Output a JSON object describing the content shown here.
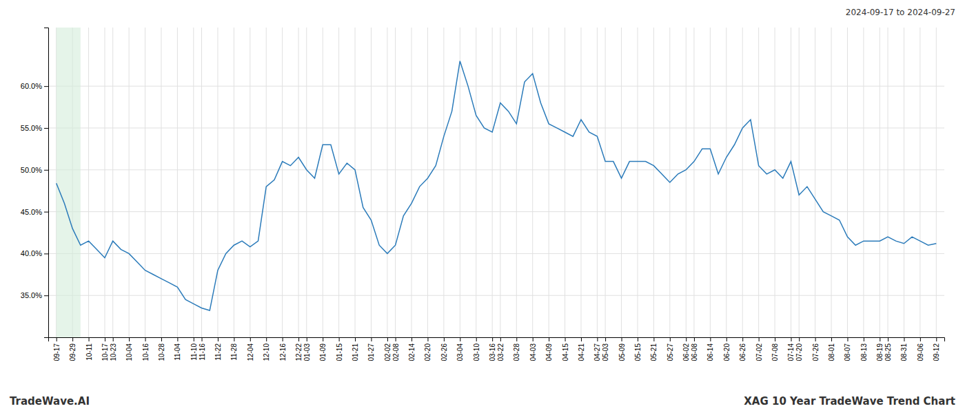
{
  "chart_data": {
    "type": "line",
    "title": "XAG 10 Year TradeWave Trend Chart",
    "subtitle": "2024-09-17 to 2024-09-27",
    "annotations": [
      "TradeWave.AI"
    ],
    "color": "#2b7bba",
    "grid": true,
    "highlight": {
      "start": 0,
      "end": 3,
      "color": "#d4edda"
    },
    "ylim": [
      0.3,
      0.67
    ],
    "yticks": [
      {
        "value": 0.35,
        "label": "35.0%"
      },
      {
        "value": 0.4,
        "label": "40.0%"
      },
      {
        "value": 0.45,
        "label": "45.0%"
      },
      {
        "value": 0.5,
        "label": "50.0%"
      },
      {
        "value": 0.55,
        "label": "55.0%"
      },
      {
        "value": 0.6,
        "label": "60.0%"
      }
    ],
    "categories": [
      "09-17",
      null,
      "09-29",
      null,
      "10-11",
      null,
      "10-17",
      "10-23",
      null,
      "10-04",
      null,
      "10-16",
      null,
      "10-28",
      null,
      "11-04",
      null,
      "11-10",
      "11-16",
      null,
      "11-22",
      null,
      "11-28",
      null,
      "12-04",
      null,
      "12-10",
      null,
      "12-16",
      null,
      "12-22",
      "01-03",
      null,
      "01-09",
      null,
      "01-15",
      null,
      "01-21",
      null,
      "01-27",
      null,
      "02-02",
      "02-08",
      null,
      "02-14",
      null,
      "02-20",
      null,
      "02-26",
      null,
      "03-04",
      null,
      "03-10",
      null,
      "03-16",
      "03-22",
      null,
      "03-28",
      null,
      "04-03",
      null,
      "04-09",
      null,
      "04-15",
      null,
      "04-21",
      null,
      "04-27",
      "05-03",
      null,
      "05-09",
      null,
      "05-15",
      null,
      "05-21",
      null,
      "05-27",
      null,
      "06-02",
      "06-08",
      null,
      "06-14",
      null,
      "06-20",
      null,
      "06-26",
      null,
      "07-02",
      null,
      "07-08",
      null,
      "07-14",
      "07-20",
      null,
      "07-26",
      null,
      "08-01",
      null,
      "08-07",
      null,
      "08-13",
      null,
      "08-19",
      "08-25",
      null,
      "08-31",
      null,
      "09-06",
      null,
      "09-12"
    ],
    "values": [
      0.484,
      0.46,
      0.43,
      0.41,
      0.415,
      0.405,
      0.395,
      0.415,
      0.405,
      0.4,
      0.39,
      0.38,
      0.375,
      0.37,
      0.365,
      0.36,
      0.345,
      0.34,
      0.335,
      0.332,
      0.38,
      0.4,
      0.41,
      0.415,
      0.408,
      0.415,
      0.48,
      0.488,
      0.51,
      0.505,
      0.515,
      0.5,
      0.49,
      0.53,
      0.53,
      0.495,
      0.508,
      0.5,
      0.455,
      0.44,
      0.41,
      0.4,
      0.41,
      0.445,
      0.46,
      0.48,
      0.49,
      0.505,
      0.54,
      0.57,
      0.63,
      0.6,
      0.565,
      0.55,
      0.545,
      0.58,
      0.57,
      0.555,
      0.605,
      0.615,
      0.58,
      0.555,
      0.55,
      0.545,
      0.54,
      0.56,
      0.545,
      0.54,
      0.51,
      0.51,
      0.49,
      0.51,
      0.51,
      0.51,
      0.505,
      0.495,
      0.485,
      0.495,
      0.5,
      0.51,
      0.525,
      0.525,
      0.495,
      0.515,
      0.53,
      0.55,
      0.56,
      0.505,
      0.495,
      0.5,
      0.49,
      0.51,
      0.47,
      0.48,
      0.465,
      0.45,
      0.445,
      0.44,
      0.42,
      0.41,
      0.415,
      0.415,
      0.415,
      0.42,
      0.415,
      0.412,
      0.42,
      0.415,
      0.41,
      0.412
    ]
  }
}
